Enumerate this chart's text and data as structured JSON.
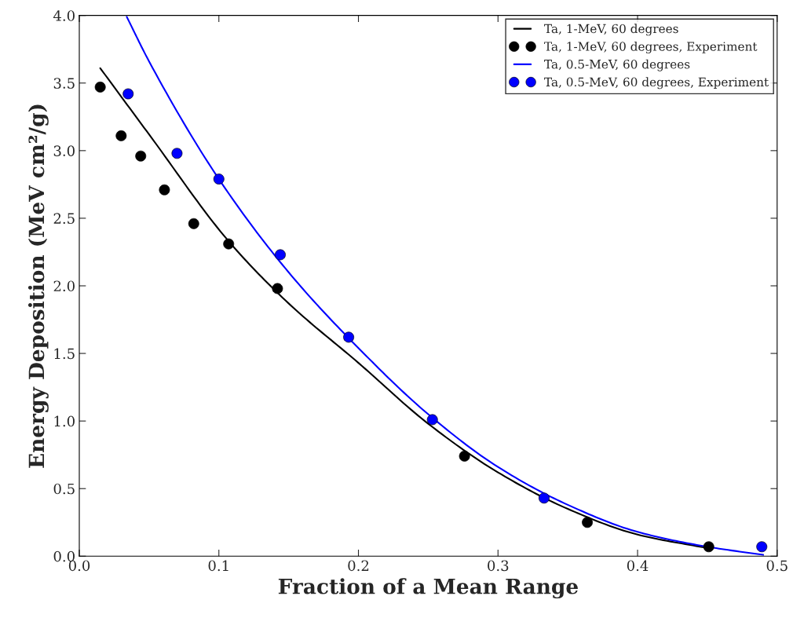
{
  "chart_data": {
    "type": "line",
    "xlabel": "Fraction of a Mean Range",
    "ylabel": "Energy Deposition (MeV cm²/g)",
    "xlim": [
      0,
      0.5
    ],
    "ylim": [
      0,
      4.0
    ],
    "xticks": [
      {
        "value": 0,
        "label": "0.0"
      },
      0.1,
      0.2,
      0.3,
      0.4,
      0.5
    ],
    "yticks": [
      {
        "value": 0,
        "label": "0.0"
      },
      0.5,
      {
        "value": 1,
        "label": "1.0"
      },
      1.5,
      {
        "value": 2,
        "label": "2.0"
      },
      2.5,
      {
        "value": 3,
        "label": "3.0"
      },
      3.5,
      {
        "value": 4,
        "label": "4.0"
      }
    ],
    "grid": false,
    "legend": "top right",
    "series": [
      {
        "name": "Ta, 1-MeV, 60 degrees",
        "color": "#000000",
        "marker": "none",
        "line_style": "solid",
        "x": [
          0.015,
          0.05,
          0.107,
          0.15,
          0.2,
          0.25,
          0.3,
          0.35,
          0.4,
          0.45
        ],
        "values": [
          3.61,
          3.12,
          2.33,
          1.87,
          1.43,
          0.98,
          0.62,
          0.35,
          0.16,
          0.06
        ]
      },
      {
        "name": "Ta, 1-MeV, 60 degrees, Experiment",
        "type": "scatter",
        "color": "#000000",
        "marker": "circle",
        "x": [
          0.015,
          0.03,
          0.044,
          0.061,
          0.082,
          0.107,
          0.142,
          0.276,
          0.364,
          0.451
        ],
        "values": [
          3.47,
          3.11,
          2.96,
          2.71,
          2.46,
          2.31,
          1.98,
          0.74,
          0.25,
          0.07
        ]
      },
      {
        "name": "Ta, 0.5-MeV, 60 degrees",
        "color": "#0000ff",
        "marker": "none",
        "line_style": "solid",
        "x": [
          0.034,
          0.05,
          0.1,
          0.15,
          0.2,
          0.25,
          0.3,
          0.35,
          0.4,
          0.45,
          0.49
        ],
        "values": [
          3.99,
          3.66,
          2.79,
          2.1,
          1.54,
          1.05,
          0.66,
          0.38,
          0.18,
          0.07,
          0.01
        ]
      },
      {
        "name": "Ta, 0.5-MeV, 60 degrees, Experiment",
        "type": "scatter",
        "color": "#0000ff",
        "marker": "circle",
        "x": [
          0.035,
          0.07,
          0.1,
          0.144,
          0.193,
          0.253,
          0.333,
          0.489
        ],
        "values": [
          3.42,
          2.98,
          2.79,
          2.23,
          1.62,
          1.01,
          0.43,
          0.07
        ]
      }
    ]
  }
}
